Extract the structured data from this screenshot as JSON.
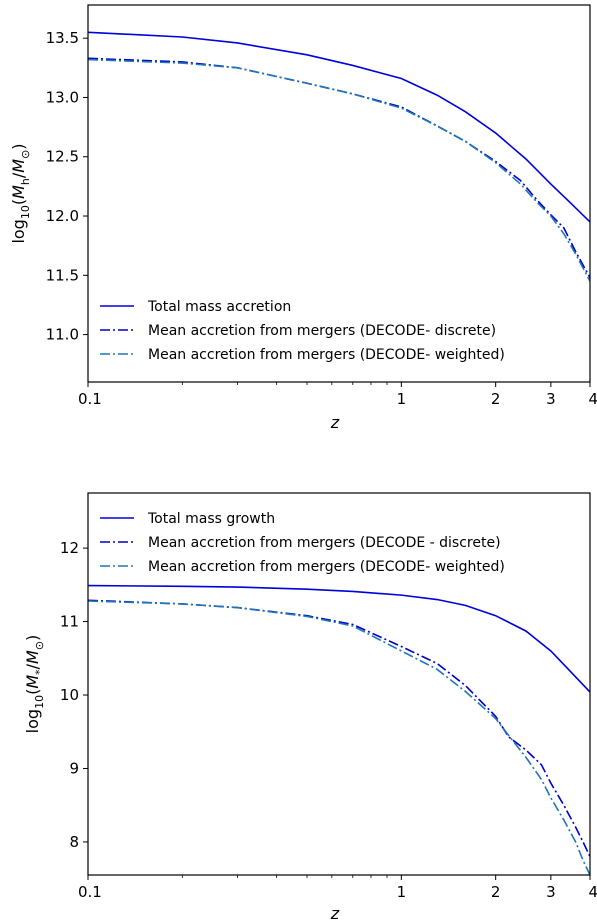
{
  "chart_data": [
    {
      "type": "line",
      "xlabel": "z",
      "ylabel": "log10(Mh/M⊙)",
      "x_scale": "log",
      "xlim": [
        0.1,
        4
      ],
      "ylim": [
        10.6,
        13.78
      ],
      "x_ticks": [
        0.1,
        1,
        2,
        3,
        4
      ],
      "x_tick_labels": [
        "0.1",
        "1",
        "2",
        "3",
        "4"
      ],
      "y_ticks": [
        11.0,
        11.5,
        12.0,
        12.5,
        13.0,
        13.5
      ],
      "y_tick_labels": [
        "11.0",
        "11.5",
        "12.0",
        "12.5",
        "13.0",
        "13.5"
      ],
      "legend_position": "lower-left",
      "series": [
        {
          "name": "Total mass accretion",
          "color": "#0000dd",
          "style": "solid",
          "x": [
            0.1,
            0.2,
            0.3,
            0.5,
            0.7,
            1.0,
            1.3,
            1.6,
            2.0,
            2.5,
            3.0,
            3.5,
            4.0
          ],
          "y": [
            13.55,
            13.51,
            13.46,
            13.36,
            13.27,
            13.16,
            13.02,
            12.88,
            12.7,
            12.48,
            12.27,
            12.1,
            11.95
          ]
        },
        {
          "name": "Mean accretion from mergers (DECODE- discrete)",
          "color": "#0000cc",
          "style": "dashdot",
          "x": [
            0.1,
            0.2,
            0.3,
            0.5,
            0.7,
            1.0,
            1.3,
            1.6,
            2.0,
            2.4,
            2.7,
            3.0,
            3.3,
            3.6,
            4.0
          ],
          "y": [
            13.33,
            13.3,
            13.25,
            13.12,
            13.03,
            12.92,
            12.76,
            12.63,
            12.46,
            12.3,
            12.14,
            12.01,
            11.9,
            11.7,
            11.48
          ]
        },
        {
          "name": "Mean accretion from mergers (DECODE- weighted)",
          "color": "#1f77b4",
          "style": "dashdot",
          "x": [
            0.1,
            0.2,
            0.3,
            0.5,
            0.7,
            1.0,
            1.3,
            1.6,
            2.0,
            2.4,
            2.7,
            3.0,
            3.3,
            3.6,
            4.0
          ],
          "y": [
            13.32,
            13.29,
            13.25,
            13.12,
            13.03,
            12.91,
            12.76,
            12.63,
            12.45,
            12.27,
            12.12,
            12.0,
            11.85,
            11.68,
            11.45
          ]
        }
      ]
    },
    {
      "type": "line",
      "xlabel": "z",
      "ylabel": "log10(M*/M⊙)",
      "x_scale": "log",
      "xlim": [
        0.1,
        4
      ],
      "ylim": [
        7.55,
        12.75
      ],
      "x_ticks": [
        0.1,
        1,
        2,
        3,
        4
      ],
      "x_tick_labels": [
        "0.1",
        "1",
        "2",
        "3",
        "4"
      ],
      "y_ticks": [
        8,
        9,
        10,
        11,
        12
      ],
      "y_tick_labels": [
        "8",
        "9",
        "10",
        "11",
        "12"
      ],
      "legend_position": "top-left",
      "series": [
        {
          "name": "Total mass growth",
          "color": "#0000dd",
          "style": "solid",
          "x": [
            0.1,
            0.2,
            0.3,
            0.5,
            0.7,
            1.0,
            1.3,
            1.6,
            2.0,
            2.5,
            3.0,
            3.5,
            4.0
          ],
          "y": [
            11.49,
            11.48,
            11.47,
            11.44,
            11.41,
            11.36,
            11.3,
            11.22,
            11.08,
            10.87,
            10.6,
            10.3,
            10.04
          ]
        },
        {
          "name": "Mean accretion from mergers (DECODE - discrete)",
          "color": "#0000cc",
          "style": "dashdot",
          "x": [
            0.1,
            0.2,
            0.3,
            0.5,
            0.7,
            1.0,
            1.3,
            1.6,
            2.0,
            2.2,
            2.5,
            2.8,
            3.0,
            3.3,
            3.6,
            3.8,
            4.0
          ],
          "y": [
            11.29,
            11.24,
            11.19,
            11.08,
            10.96,
            10.66,
            10.43,
            10.13,
            9.71,
            9.43,
            9.25,
            9.05,
            8.8,
            8.5,
            8.2,
            8.0,
            7.8
          ]
        },
        {
          "name": "Mean accretion from mergers (DECODE- weighted)",
          "color": "#1f77b4",
          "style": "dashdot",
          "x": [
            0.1,
            0.2,
            0.3,
            0.5,
            0.7,
            1.0,
            1.3,
            1.6,
            2.0,
            2.2,
            2.5,
            2.8,
            3.0,
            3.3,
            3.6,
            3.8,
            4.0
          ],
          "y": [
            11.28,
            11.24,
            11.19,
            11.07,
            10.94,
            10.6,
            10.35,
            10.05,
            9.68,
            9.45,
            9.15,
            8.85,
            8.6,
            8.3,
            8.0,
            7.75,
            7.55
          ]
        }
      ]
    }
  ]
}
